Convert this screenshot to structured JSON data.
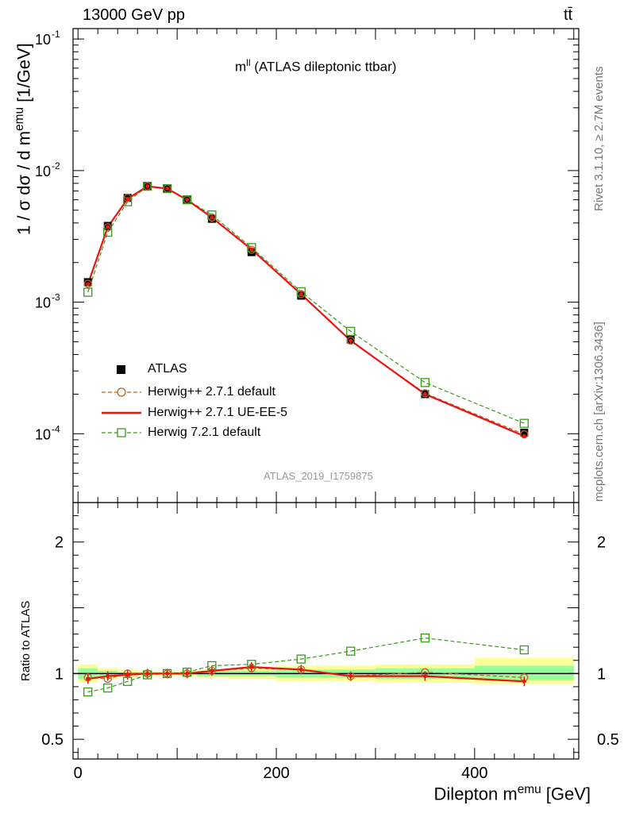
{
  "header": {
    "left": "13000 GeV pp",
    "right": "tt̄"
  },
  "side_text": {
    "top": "Rivet 3.1.10, ≥ 2.7M events",
    "bottom": "mcplots.cern.ch [arXiv:1306.3436]"
  },
  "title": {
    "main": "m",
    "sup": "ll",
    "rest": " (ATLAS dileptonic ttbar)"
  },
  "watermark": "ATLAS_2019_I1759875",
  "ylabel": {
    "main": "1 / σ  dσ / d m",
    "sup": "emu",
    "unit": " [1/GeV]"
  },
  "xlabel": {
    "main": "Dilepton m",
    "sup": "emu",
    "unit": " [GeV]"
  },
  "ratio_label": "Ratio to ATLAS",
  "colors": {
    "data": "#000000",
    "default": "#b8641e",
    "ueee5": "#ee1111",
    "h7": "#3a9a1a",
    "band_yellow": "#ffff99",
    "band_green": "#99ff99"
  },
  "chart_data": {
    "type": "line",
    "x_edges": [
      0,
      20,
      40,
      60,
      80,
      100,
      120,
      150,
      200,
      250,
      300,
      400,
      500
    ],
    "x": [
      10,
      30,
      50,
      70,
      90,
      110,
      135,
      175,
      225,
      275,
      350,
      450
    ],
    "xlim": [
      -5,
      505
    ],
    "main_ylim": [
      3e-05,
      0.12
    ],
    "main_yscale": "log",
    "main_yticks": [
      {
        "mant": "10",
        "exp": "-4",
        "v": 0.0001
      },
      {
        "mant": "10",
        "exp": "-3",
        "v": 0.001
      },
      {
        "mant": "10",
        "exp": "-2",
        "v": 0.01
      },
      {
        "mant": "10",
        "exp": "-1",
        "v": 0.1
      }
    ],
    "ratio_ylim": [
      0.35,
      2.3
    ],
    "ratio_yticks": [
      {
        "label": "0.5",
        "v": 0.5
      },
      {
        "label": "1",
        "v": 1
      },
      {
        "label": "2",
        "v": 2
      }
    ],
    "xticks": [
      {
        "label": "0",
        "v": 0
      },
      {
        "label": "200",
        "v": 200
      },
      {
        "label": "400",
        "v": 400
      }
    ],
    "series": [
      {
        "name": "ATLAS",
        "key": "data",
        "values": [
          0.00142,
          0.0038,
          0.0062,
          0.0076,
          0.0073,
          0.006,
          0.0043,
          0.0024,
          0.00112,
          0.00052,
          0.0002,
          0.000102
        ]
      },
      {
        "name": "Herwig++ 2.7.1 default",
        "key": "default",
        "values": [
          0.00138,
          0.0037,
          0.0062,
          0.0076,
          0.0073,
          0.006,
          0.0044,
          0.0025,
          0.00115,
          0.00051,
          0.000203,
          9.9e-05
        ],
        "ratio": [
          0.97,
          0.96,
          1.0,
          1.0,
          1.0,
          1.0,
          1.02,
          1.04,
          1.03,
          0.98,
          1.01,
          0.97
        ]
      },
      {
        "name": "Herwig++ 2.7.1 UE-EE-5",
        "key": "ueee5",
        "values": [
          0.00137,
          0.00372,
          0.0061,
          0.0076,
          0.0073,
          0.006,
          0.0044,
          0.00252,
          0.00115,
          0.00051,
          0.0002,
          9.6e-05
        ],
        "ratio": [
          0.96,
          0.98,
          0.99,
          1.0,
          1.0,
          1.0,
          1.02,
          1.05,
          1.03,
          0.98,
          0.98,
          0.94
        ]
      },
      {
        "name": "Herwig 7.2.1 default",
        "key": "h7",
        "values": [
          0.00119,
          0.0034,
          0.0058,
          0.0076,
          0.0073,
          0.006,
          0.0046,
          0.0026,
          0.0012,
          0.0006,
          0.000245,
          0.00012
        ],
        "ratio": [
          0.86,
          0.89,
          0.94,
          0.99,
          1.0,
          1.01,
          1.06,
          1.07,
          1.11,
          1.17,
          1.27,
          1.18
        ]
      }
    ],
    "band_yellow": [
      [
        0.93,
        1.07
      ],
      [
        0.96,
        1.04
      ],
      [
        0.97,
        1.03
      ],
      [
        0.98,
        1.02
      ],
      [
        0.98,
        1.02
      ],
      [
        0.98,
        1.02
      ],
      [
        0.97,
        1.03
      ],
      [
        0.96,
        1.04
      ],
      [
        0.94,
        1.06
      ],
      [
        0.94,
        1.06
      ],
      [
        0.93,
        1.07
      ],
      [
        0.92,
        1.12
      ]
    ],
    "band_green": [
      [
        0.96,
        1.04
      ],
      [
        0.98,
        1.02
      ],
      [
        0.99,
        1.01
      ],
      [
        0.99,
        1.01
      ],
      [
        0.99,
        1.01
      ],
      [
        0.99,
        1.01
      ],
      [
        0.98,
        1.02
      ],
      [
        0.98,
        1.02
      ],
      [
        0.97,
        1.03
      ],
      [
        0.97,
        1.03
      ],
      [
        0.96,
        1.04
      ],
      [
        0.95,
        1.06
      ]
    ]
  }
}
